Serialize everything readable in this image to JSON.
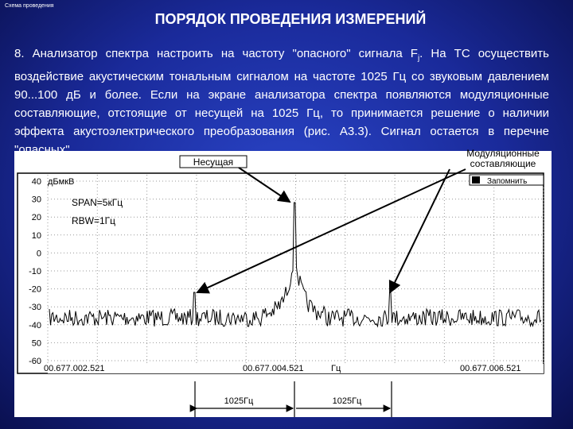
{
  "header": {
    "caption": "Схема проведения",
    "title": "ПОРЯДОК ПРОВЕДЕНИЯ ИЗМЕРЕНИЙ"
  },
  "body": {
    "paragraph_start": "8. Анализатор спектра настроить на частоту \"опасного\" сигнала F",
    "subscript": "j",
    "paragraph_end": ". На ТС осуществить воздействие акустическим тональным сигналом на частоте 1025 Гц со звуковым давлением 90...100 дБ и более. Если на экране анализатора спектра появляются модуляционные составляющие, отстоящие от несущей на 1025 Гц, то принимается решение о наличии эффекта акустоэлектрического преобразования (рис. А3.3). Сигнал остается в перечне \"опасных\"."
  },
  "figure": {
    "unit": "дБмкВ",
    "y_labels": [
      "40",
      "30",
      "20",
      "10",
      "0",
      "-10",
      "-20",
      "-30",
      "-40",
      "50",
      "-60"
    ],
    "span": "SPAN=5кГц",
    "rbw": "RBW=1Гц",
    "memory_button": "Запомнить",
    "x_labels": [
      "00.677.002.521",
      "00.677.004.521",
      "00.677.006.521"
    ],
    "x_unit": "Гц",
    "carrier_label": "Несущая",
    "modulation_label": [
      "Модуляционные",
      "составляющие"
    ],
    "spacing_labels": [
      "1025Гц",
      "1025Гц"
    ]
  }
}
